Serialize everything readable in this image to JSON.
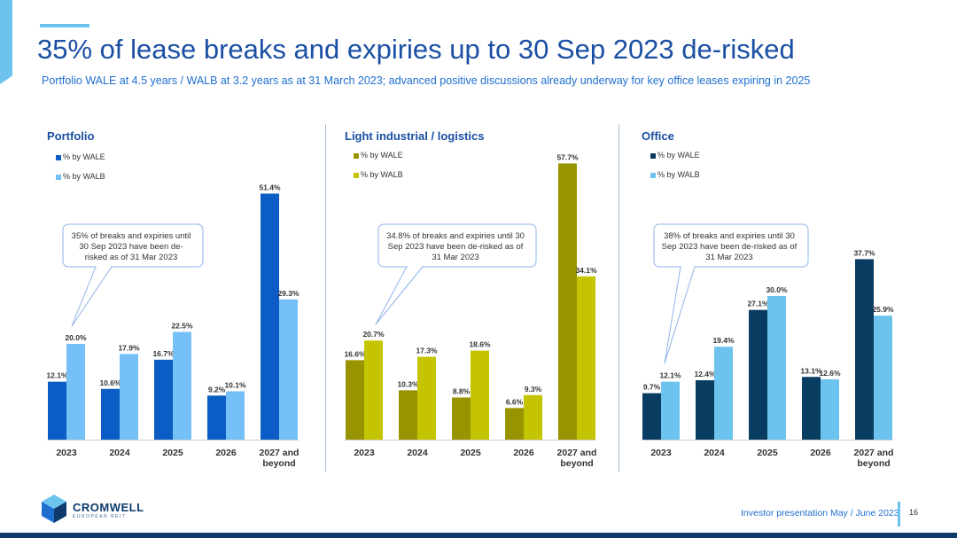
{
  "header": {
    "title": "35% of lease breaks and expiries up to 30 Sep 2023 de-risked",
    "subtitle": "Portfolio WALE at 4.5 years / WALB at 3.2 years as at 31 March 2023; advanced positive discussions already underway for key office leases expiring in 2025"
  },
  "colors": {
    "title": "#1a4fa3",
    "subtitle": "#1f6fd0",
    "accent": "#6cc4ee",
    "bottom_band": "#0d3a6b"
  },
  "chart_data": [
    {
      "type": "bar",
      "title": "Portfolio",
      "categories": [
        "2023",
        "2024",
        "2025",
        "2026",
        "2027 and beyond"
      ],
      "series": [
        {
          "name": "% by WALE",
          "values": [
            12.1,
            10.6,
            16.7,
            9.2,
            51.4
          ],
          "color": "#0b5cc4"
        },
        {
          "name": "% by WALB",
          "values": [
            20.0,
            17.9,
            22.5,
            10.1,
            29.3
          ],
          "color": "#76c0f8"
        }
      ],
      "data_labels": [
        [
          "12.1%",
          "10.6%",
          "16.7%",
          "9.2%",
          "51.4%"
        ],
        [
          "20.0%",
          "17.9%",
          "22.5%",
          "10.1%",
          "29.3%"
        ]
      ],
      "callout": "35% of breaks and expiries until 30 Sep 2023 have been de-risked as of 31 Mar 2023",
      "legend": "top-left",
      "grid": false
    },
    {
      "type": "bar",
      "title": "Light industrial / logistics",
      "categories": [
        "2023",
        "2024",
        "2025",
        "2026",
        "2027 and beyond"
      ],
      "series": [
        {
          "name": "% by WALE",
          "values": [
            16.6,
            10.3,
            8.8,
            6.6,
            57.7
          ],
          "color": "#979400"
        },
        {
          "name": "% by WALB",
          "values": [
            20.7,
            17.3,
            18.6,
            9.3,
            34.1
          ],
          "color": "#c5c400"
        }
      ],
      "data_labels": [
        [
          "16.6%",
          "10.3%",
          "8.8%",
          "6.6%",
          "57.7%"
        ],
        [
          "20.7%",
          "17.3%",
          "18.6%",
          "9.3%",
          "34.1%"
        ]
      ],
      "callout": "34.8% of breaks and expiries until 30 Sep 2023 have been de-risked as of 31 Mar 2023",
      "legend": "top-left",
      "grid": false
    },
    {
      "type": "bar",
      "title": "Office",
      "categories": [
        "2023",
        "2024",
        "2025",
        "2026",
        "2027 and beyond"
      ],
      "series": [
        {
          "name": "% by WALE",
          "values": [
            9.7,
            12.4,
            27.1,
            13.1,
            37.7
          ],
          "color": "#093c61"
        },
        {
          "name": "% by WALB",
          "values": [
            12.1,
            19.4,
            30.0,
            12.6,
            25.9
          ],
          "color": "#6cc4ee"
        }
      ],
      "data_labels": [
        [
          "9.7%",
          "12.4%",
          "27.1%",
          "13.1%",
          "37.7%"
        ],
        [
          "12.1%",
          "19.4%",
          "30.0%",
          "12.6%",
          "25.9%"
        ]
      ],
      "callout": "38% of breaks and expiries until 30 Sep 2023 have been de-risked as of 31 Mar 2023",
      "legend": "top-left",
      "grid": false
    }
  ],
  "logo": {
    "name": "CROMWELL",
    "tagline": "EUROPEAN REIT",
    "icon": "cromwell-cube-icon"
  },
  "footer": {
    "text": "Investor presentation May / June 2023",
    "page_number": "16"
  }
}
